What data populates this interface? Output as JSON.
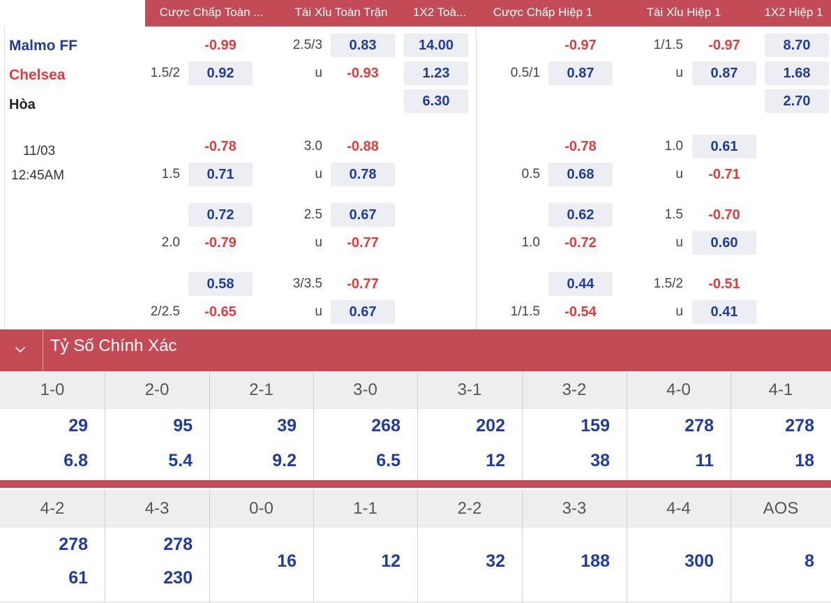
{
  "header": {
    "columns": [
      "Cược Chấp Toàn ...",
      "Tài Xỉu Toàn Trận",
      "1X2 Toà...",
      "Cược Chấp Hiệp 1",
      "Tài Xỉu Hiệp 1",
      "1X2 Hiệp 1"
    ]
  },
  "match": {
    "home": "Malmo FF",
    "away": "Chelsea",
    "draw": "Hòa",
    "date": "11/03",
    "time": "12:45AM"
  },
  "colors": {
    "header_bg": "#c24b55",
    "positive": "#1f3c9e",
    "negative": "#e83a3a",
    "away_team": "#e83a3a",
    "home_team": "#1f3c9e"
  },
  "markets": [
    {
      "hdp_ft": {
        "top": "-0.99",
        "line": "1.5/2",
        "bottom": "0.92"
      },
      "ou_ft": {
        "line": "2.5/3",
        "over": "0.83",
        "u": "u",
        "under": "-0.93"
      },
      "x12_ft": {
        "home": "14.00",
        "away": "1.23",
        "draw": "6.30"
      },
      "hdp_h1": {
        "top": "-0.97",
        "line": "0.5/1",
        "bottom": "0.87"
      },
      "ou_h1": {
        "line": "1/1.5",
        "over": "-0.97",
        "u": "u",
        "under": "0.87"
      },
      "x12_h1": {
        "home": "8.70",
        "away": "1.68",
        "draw": "2.70"
      }
    },
    {
      "hdp_ft": {
        "top": "-0.78",
        "line": "1.5",
        "bottom": "0.71"
      },
      "ou_ft": {
        "line": "3.0",
        "over": "-0.88",
        "u": "u",
        "under": "0.78"
      },
      "hdp_h1": {
        "top": "-0.78",
        "line": "0.5",
        "bottom": "0.68"
      },
      "ou_h1": {
        "line": "1.0",
        "over": "0.61",
        "u": "u",
        "under": "-0.71"
      }
    },
    {
      "hdp_ft": {
        "top": "0.72",
        "line": "2.0",
        "bottom": "-0.79"
      },
      "ou_ft": {
        "line": "2.5",
        "over": "0.67",
        "u": "u",
        "under": "-0.77"
      },
      "hdp_h1": {
        "top": "0.62",
        "line": "1.0",
        "bottom": "-0.72"
      },
      "ou_h1": {
        "line": "1.5",
        "over": "-0.70",
        "u": "u",
        "under": "0.60"
      }
    },
    {
      "hdp_ft": {
        "top": "0.58",
        "line": "2/2.5",
        "bottom": "-0.65"
      },
      "ou_ft": {
        "line": "3/3.5",
        "over": "-0.77",
        "u": "u",
        "under": "0.67"
      },
      "hdp_h1": {
        "top": "0.44",
        "line": "1/1.5",
        "bottom": "-0.54"
      },
      "ou_h1": {
        "line": "1.5/2",
        "over": "-0.51",
        "u": "u",
        "under": "0.41"
      }
    }
  ],
  "correct_score": {
    "title": "Tỷ Số Chính Xác",
    "row1": [
      {
        "score": "1-0",
        "a": "29",
        "b": "6.8"
      },
      {
        "score": "2-0",
        "a": "95",
        "b": "5.4"
      },
      {
        "score": "2-1",
        "a": "39",
        "b": "9.2"
      },
      {
        "score": "3-0",
        "a": "268",
        "b": "6.5"
      },
      {
        "score": "3-1",
        "a": "202",
        "b": "12"
      },
      {
        "score": "3-2",
        "a": "159",
        "b": "38"
      },
      {
        "score": "4-0",
        "a": "278",
        "b": "11"
      },
      {
        "score": "4-1",
        "a": "278",
        "b": "18"
      }
    ],
    "row2": [
      {
        "score": "4-2",
        "a": "278",
        "b": "61"
      },
      {
        "score": "4-3",
        "a": "278",
        "b": "230"
      },
      {
        "score": "0-0",
        "single": "16"
      },
      {
        "score": "1-1",
        "single": "12"
      },
      {
        "score": "2-2",
        "single": "32"
      },
      {
        "score": "3-3",
        "single": "188"
      },
      {
        "score": "4-4",
        "single": "300"
      },
      {
        "score": "AOS",
        "single": "8"
      }
    ]
  }
}
